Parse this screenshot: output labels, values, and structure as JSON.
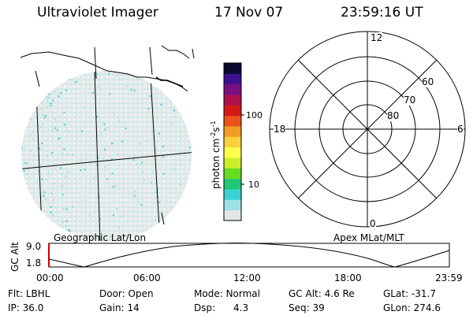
{
  "header": {
    "title": "Ultraviolet Imager",
    "date": "17 Nov 07",
    "time": "23:59:16 UT"
  },
  "geo_panel": {
    "caption": "Geographic Lat/Lon"
  },
  "colorbar": {
    "unit_main": "photon cm",
    "unit_sup1": "-2",
    "unit_mid": "s",
    "unit_sup2": "-1",
    "ticks": [
      "100",
      "10"
    ],
    "scale": "log",
    "colors": [
      "#e0e6e6",
      "#9fe0e6",
      "#3cd2d6",
      "#21c777",
      "#66dd22",
      "#c8ef2a",
      "#fffe4d",
      "#f7d23a",
      "#f19b22",
      "#e8531c",
      "#d41818",
      "#b0104a",
      "#7a1080",
      "#3c1090",
      "#0a0a30"
    ]
  },
  "polar_panel": {
    "caption": "Apex MLat/MLT",
    "mlt_labels": {
      "top": "12",
      "left": "18",
      "right": "6",
      "bottom": "0"
    },
    "lat_labels": [
      "60",
      "70",
      "80"
    ]
  },
  "altitude_plot": {
    "ylabel": "GC Alt",
    "yticks": [
      "9.0",
      "1.8"
    ],
    "xticks": [
      "00:00",
      "06:00",
      "12:00",
      "18:00",
      "23:59"
    ]
  },
  "info": {
    "row1": {
      "flt_label": "Flt:",
      "flt_value": "LBHL",
      "door_label": "Door:",
      "door_value": "Open",
      "mode_label": "Mode:",
      "mode_value": "Normal",
      "gcalt_label": "GC Alt:",
      "gcalt_value": "4.6 Re",
      "glat_label": "GLat:",
      "glat_value": "-31.7"
    },
    "row2": {
      "ip_label": "IP:",
      "ip_value": "36.0",
      "gain_label": "Gain:",
      "gain_value": "14",
      "dsp_label": "Dsp:",
      "dsp_value": "4.3",
      "seq_label": "Seq:",
      "seq_value": "39",
      "glon_label": "GLon:",
      "glon_value": "274.6"
    }
  }
}
